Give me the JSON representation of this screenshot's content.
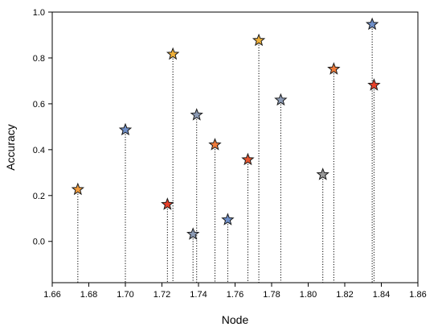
{
  "chart_data": {
    "type": "scatter",
    "xlabel": "Node",
    "ylabel": "Accuracy",
    "xlim": [
      1.66,
      1.86
    ],
    "ylim": [
      -0.18,
      1.0
    ],
    "xticks": [
      "1.66",
      "1.68",
      "1.70",
      "1.72",
      "1.74",
      "1.76",
      "1.78",
      "1.80",
      "1.82",
      "1.84",
      "1.86"
    ],
    "yticks": [
      "0.0",
      "0.2",
      "0.4",
      "0.6",
      "0.8",
      "1.0"
    ],
    "grid": false,
    "marker": "star",
    "stem_style": "dotted",
    "points": [
      {
        "x": 1.674,
        "y": 0.23,
        "color": "#f39c3c"
      },
      {
        "x": 1.7,
        "y": 0.49,
        "color": "#6f8fc9"
      },
      {
        "x": 1.723,
        "y": 0.165,
        "color": "#e8402a"
      },
      {
        "x": 1.726,
        "y": 0.82,
        "color": "#f0b13a"
      },
      {
        "x": 1.737,
        "y": 0.035,
        "color": "#8c9bb5"
      },
      {
        "x": 1.739,
        "y": 0.555,
        "color": "#8c9bb5"
      },
      {
        "x": 1.749,
        "y": 0.425,
        "color": "#f07b3a"
      },
      {
        "x": 1.756,
        "y": 0.098,
        "color": "#6f8fc9"
      },
      {
        "x": 1.767,
        "y": 0.36,
        "color": "#e8552e"
      },
      {
        "x": 1.773,
        "y": 0.88,
        "color": "#f0b13a"
      },
      {
        "x": 1.785,
        "y": 0.62,
        "color": "#8c9bb5"
      },
      {
        "x": 1.808,
        "y": 0.295,
        "color": "#999999"
      },
      {
        "x": 1.814,
        "y": 0.755,
        "color": "#f07b3a"
      },
      {
        "x": 1.835,
        "y": 0.95,
        "color": "#6f8fc9"
      },
      {
        "x": 1.836,
        "y": 0.685,
        "color": "#e8402a"
      }
    ]
  }
}
